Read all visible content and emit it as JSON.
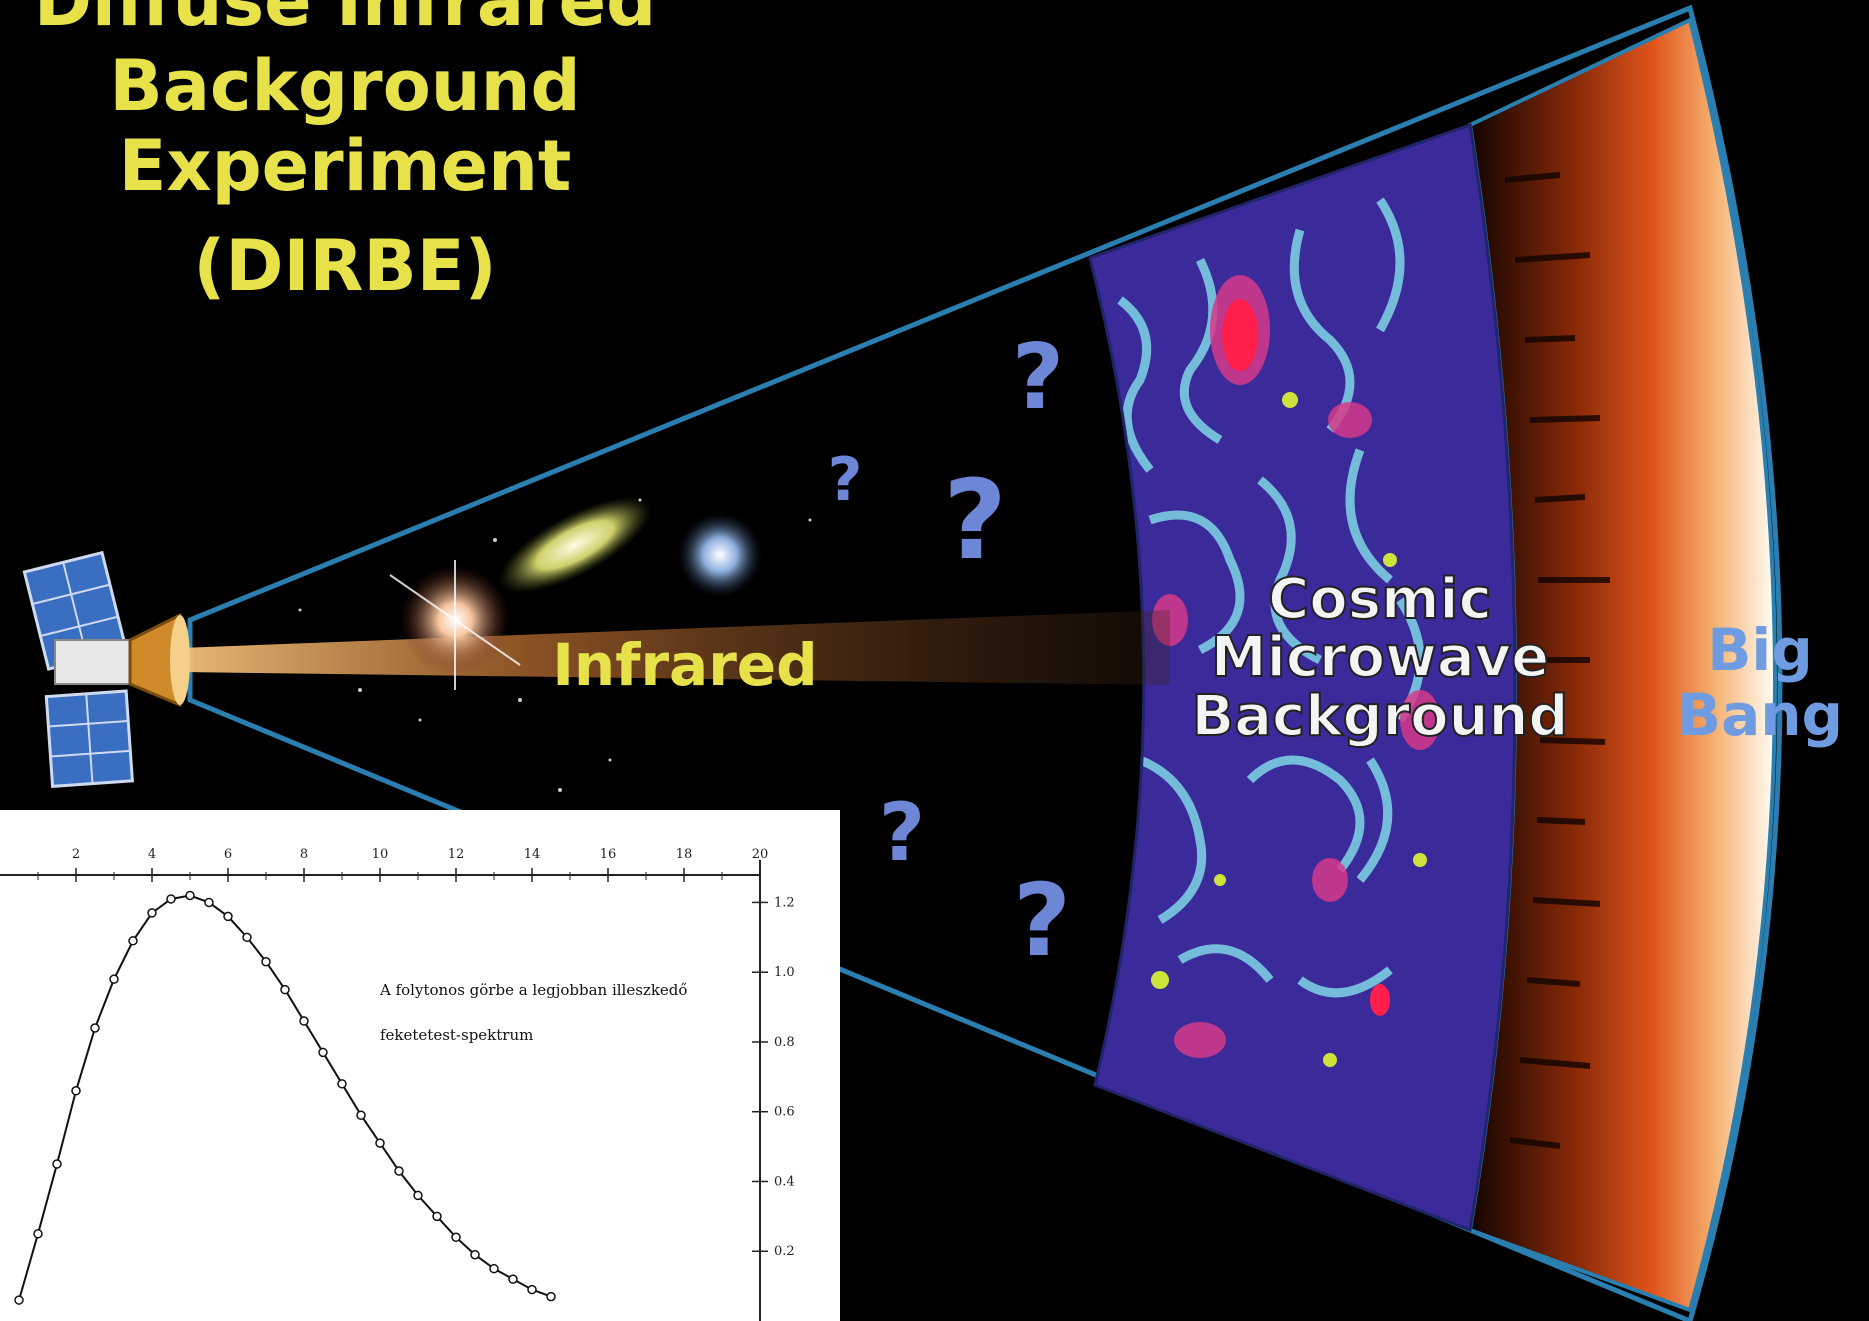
{
  "title_lines": [
    "Diffuse Infrared",
    "Background",
    "Experiment",
    "(DIRBE)"
  ],
  "beam_label": "Infrared",
  "cmb_label_lines": [
    "Cosmic",
    "Microwave",
    "Background"
  ],
  "big_bang_lines": [
    "Big",
    "Bang"
  ],
  "question_mark": "?",
  "colors": {
    "title": "#e8e24a",
    "cone_edge": "#2a7fb0",
    "cmb_base": "#3b2a9a",
    "fire": "#e0541a",
    "big_bang_text": "#6f9be0"
  },
  "inset": {
    "annotation_line1": "A folytonos görbe a legjobban illeszkedő",
    "annotation_line2": "feketetest-spektrum",
    "top_ticks": [
      "2",
      "4",
      "6",
      "8",
      "10",
      "12",
      "14",
      "16",
      "18",
      "20"
    ],
    "right_ticks": [
      "1.2",
      "1.0",
      "0.8",
      "0.6",
      "0.4",
      "0.2"
    ]
  },
  "chart_data": {
    "type": "scatter",
    "title": "",
    "xlabel": "",
    "ylabel": "",
    "xlim": [
      0,
      20
    ],
    "x": [
      0.5,
      1.0,
      1.5,
      2.0,
      2.5,
      3.0,
      3.5,
      4.0,
      4.5,
      5.0,
      5.5,
      6.0,
      6.5,
      7.0,
      7.5,
      8.0,
      8.5,
      9.0,
      9.5,
      10.0,
      10.5,
      11.0,
      11.5,
      12.0,
      12.5,
      13.0,
      13.5,
      14.0,
      14.5
    ],
    "y": [
      0.06,
      0.25,
      0.45,
      0.66,
      0.84,
      0.98,
      1.09,
      1.17,
      1.21,
      1.22,
      1.2,
      1.16,
      1.1,
      1.03,
      0.95,
      0.86,
      0.77,
      0.68,
      0.59,
      0.51,
      0.43,
      0.36,
      0.3,
      0.24,
      0.19,
      0.15,
      0.12,
      0.09,
      0.07
    ],
    "series": [
      {
        "name": "",
        "style": "points with continuous fitted curve"
      }
    ]
  }
}
